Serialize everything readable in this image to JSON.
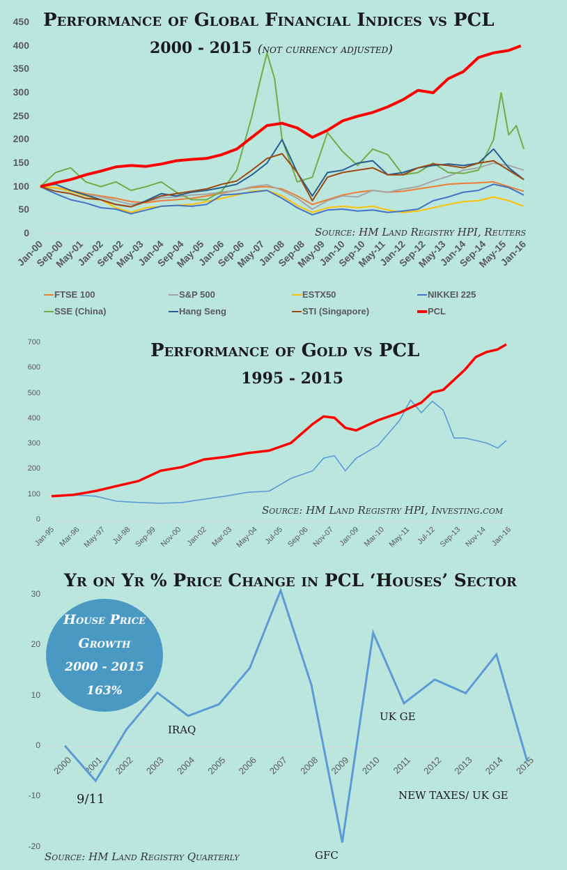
{
  "chart_data": [
    {
      "type": "line",
      "title": "Performance of Global Financial Indices vs PCL",
      "subtitle": "2000 - 2015",
      "subtitle_note": "(not currency adjusted)",
      "source": "Source: HM Land Registry HPI, Reuters",
      "xlabel": "",
      "ylabel": "",
      "ylim": [
        0,
        450
      ],
      "yticks": [
        0,
        50,
        100,
        150,
        200,
        250,
        300,
        350,
        400,
        450
      ],
      "xticks": [
        "Jan-00",
        "Sep-00",
        "May-01",
        "Jan-02",
        "Sep-02",
        "May-03",
        "Jan-04",
        "Sep-04",
        "May-05",
        "Jan-06",
        "Sep-06",
        "May-07",
        "Jan-08",
        "Sep-08",
        "May-09",
        "Jan-10",
        "Sep-10",
        "May-11",
        "Jan-12",
        "Sep-12",
        "May-13",
        "Jan-14",
        "Sep-14",
        "May-15",
        "Jan-16"
      ],
      "x_range_years": [
        2000,
        2016
      ],
      "legend_position": "bottom",
      "grid": false,
      "series": [
        {
          "name": "FTSE 100",
          "color": "#ed7d31",
          "x": [
            2000,
            2000.5,
            2001,
            2001.5,
            2002,
            2002.5,
            2003,
            2003.5,
            2004,
            2004.5,
            2005,
            2005.5,
            2006,
            2006.5,
            2007,
            2007.5,
            2008,
            2008.5,
            2009,
            2009.5,
            2010,
            2010.5,
            2011,
            2011.5,
            2012,
            2012.5,
            2013,
            2013.5,
            2014,
            2014.5,
            2015,
            2015.5,
            2016
          ],
          "values": [
            100,
            98,
            92,
            85,
            80,
            75,
            68,
            66,
            70,
            72,
            75,
            80,
            86,
            92,
            98,
            100,
            95,
            80,
            62,
            72,
            82,
            88,
            92,
            88,
            90,
            95,
            100,
            105,
            107,
            108,
            110,
            100,
            90
          ]
        },
        {
          "name": "S&P 500",
          "color": "#a5a5a5",
          "x": [
            2000,
            2000.5,
            2001,
            2001.5,
            2002,
            2002.5,
            2003,
            2003.5,
            2004,
            2004.5,
            2005,
            2005.5,
            2006,
            2006.5,
            2007,
            2007.5,
            2008,
            2008.5,
            2009,
            2009.5,
            2010,
            2010.5,
            2011,
            2011.5,
            2012,
            2012.5,
            2013,
            2013.5,
            2014,
            2014.5,
            2015,
            2015.5,
            2016
          ],
          "values": [
            100,
            97,
            90,
            83,
            78,
            70,
            62,
            68,
            76,
            78,
            82,
            84,
            88,
            92,
            100,
            104,
            92,
            75,
            52,
            70,
            80,
            78,
            92,
            88,
            95,
            100,
            112,
            122,
            135,
            140,
            150,
            145,
            135
          ]
        },
        {
          "name": "ESTX50",
          "color": "#ffc000",
          "x": [
            2000,
            2000.5,
            2001,
            2001.5,
            2002,
            2002.5,
            2003,
            2003.5,
            2004,
            2004.5,
            2005,
            2005.5,
            2006,
            2006.5,
            2007,
            2007.5,
            2008,
            2008.5,
            2009,
            2009.5,
            2010,
            2010.5,
            2011,
            2011.5,
            2012,
            2012.5,
            2013,
            2013.5,
            2014,
            2014.5,
            2015,
            2015.5,
            2016
          ],
          "values": [
            100,
            98,
            90,
            80,
            72,
            55,
            45,
            55,
            58,
            60,
            62,
            68,
            75,
            82,
            90,
            92,
            80,
            60,
            45,
            55,
            58,
            55,
            58,
            50,
            45,
            48,
            55,
            62,
            68,
            70,
            78,
            70,
            58
          ]
        },
        {
          "name": "NIKKEI 225",
          "color": "#4472c4",
          "x": [
            2000,
            2000.5,
            2001,
            2001.5,
            2002,
            2002.5,
            2003,
            2003.5,
            2004,
            2004.5,
            2005,
            2005.5,
            2006,
            2006.5,
            2007,
            2007.5,
            2008,
            2008.5,
            2009,
            2009.5,
            2010,
            2010.5,
            2011,
            2011.5,
            2012,
            2012.5,
            2013,
            2013.5,
            2014,
            2014.5,
            2015,
            2015.5,
            2016
          ],
          "values": [
            100,
            85,
            72,
            65,
            55,
            52,
            42,
            50,
            58,
            60,
            58,
            62,
            82,
            84,
            88,
            92,
            75,
            55,
            40,
            50,
            52,
            48,
            50,
            45,
            48,
            52,
            70,
            78,
            88,
            92,
            105,
            98,
            82
          ]
        },
        {
          "name": "SSE (China)",
          "color": "#70ad47",
          "x": [
            2000,
            2000.5,
            2001,
            2001.5,
            2002,
            2002.5,
            2003,
            2003.5,
            2004,
            2004.5,
            2005,
            2005.5,
            2006,
            2006.5,
            2007,
            2007.25,
            2007.5,
            2007.75,
            2008,
            2008.5,
            2009,
            2009.5,
            2010,
            2010.5,
            2011,
            2011.5,
            2012,
            2012.5,
            2013,
            2013.5,
            2014,
            2014.5,
            2015,
            2015.25,
            2015.5,
            2015.75,
            2016
          ],
          "values": [
            100,
            130,
            140,
            110,
            100,
            110,
            92,
            100,
            110,
            88,
            72,
            72,
            90,
            135,
            250,
            320,
            385,
            330,
            200,
            110,
            120,
            215,
            175,
            145,
            180,
            168,
            125,
            130,
            150,
            130,
            128,
            135,
            200,
            300,
            210,
            230,
            180
          ]
        },
        {
          "name": "Hang Seng",
          "color": "#255e91",
          "x": [
            2000,
            2000.5,
            2001,
            2001.5,
            2002,
            2002.5,
            2003,
            2003.5,
            2004,
            2004.5,
            2005,
            2005.5,
            2006,
            2006.5,
            2007,
            2007.5,
            2008,
            2008.5,
            2009,
            2009.5,
            2010,
            2010.5,
            2011,
            2011.5,
            2012,
            2012.5,
            2013,
            2013.5,
            2014,
            2014.5,
            2015,
            2015.5,
            2016
          ],
          "values": [
            100,
            105,
            92,
            82,
            72,
            62,
            57,
            70,
            85,
            80,
            88,
            92,
            98,
            105,
            125,
            150,
            200,
            130,
            80,
            130,
            135,
            150,
            155,
            125,
            130,
            140,
            145,
            148,
            145,
            150,
            180,
            140,
            115
          ]
        },
        {
          "name": "STI (Singapore)",
          "color": "#9e480e",
          "x": [
            2000,
            2000.5,
            2001,
            2001.5,
            2002,
            2002.5,
            2003,
            2003.5,
            2004,
            2004.5,
            2005,
            2005.5,
            2006,
            2006.5,
            2007,
            2007.5,
            2008,
            2008.5,
            2009,
            2009.5,
            2010,
            2010.5,
            2011,
            2011.5,
            2012,
            2012.5,
            2013,
            2013.5,
            2014,
            2014.5,
            2015,
            2015.5,
            2016
          ],
          "values": [
            100,
            90,
            85,
            75,
            72,
            62,
            57,
            68,
            80,
            85,
            90,
            95,
            105,
            112,
            135,
            160,
            170,
            130,
            70,
            120,
            130,
            135,
            140,
            125,
            125,
            140,
            148,
            145,
            140,
            150,
            155,
            135,
            115
          ]
        },
        {
          "name": "PCL",
          "color": "#ff0000",
          "x": [
            2000,
            2000.5,
            2001,
            2001.5,
            2002,
            2002.5,
            2003,
            2003.5,
            2004,
            2004.5,
            2005,
            2005.5,
            2006,
            2006.5,
            2007,
            2007.5,
            2008,
            2008.5,
            2009,
            2009.5,
            2010,
            2010.5,
            2011,
            2011.5,
            2012,
            2012.5,
            2013,
            2013.5,
            2014,
            2014.5,
            2015,
            2015.5,
            2015.9
          ],
          "values": [
            100,
            108,
            115,
            125,
            133,
            142,
            145,
            143,
            148,
            155,
            158,
            160,
            168,
            180,
            205,
            230,
            235,
            225,
            205,
            220,
            240,
            250,
            258,
            270,
            285,
            305,
            300,
            330,
            345,
            375,
            385,
            390,
            400
          ]
        }
      ]
    },
    {
      "type": "line",
      "title": "Performance of Gold vs PCL",
      "subtitle": "1995 - 2015",
      "source": "Source: HM Land Registry HPI, Investing.com",
      "xlabel": "",
      "ylabel": "",
      "ylim": [
        0,
        700
      ],
      "yticks": [
        0,
        100,
        200,
        300,
        400,
        500,
        600,
        700
      ],
      "xticks": [
        "Jan-95",
        "Mar-96",
        "May-97",
        "Jul-98",
        "Sep-99",
        "Nov-00",
        "Jan-02",
        "Mar-03",
        "May-04",
        "Jul-05",
        "Sep-06",
        "Nov-07",
        "Jan-09",
        "Mar-10",
        "May-11",
        "Jul-12",
        "Sep-13",
        "Nov-14",
        "Jan-16"
      ],
      "x_range_years": [
        1995,
        2016
      ],
      "grid": false,
      "series": [
        {
          "name": "PCL",
          "color": "#ff0000",
          "x": [
            1995,
            1996,
            1997,
            1998,
            1999,
            2000,
            2001,
            2002,
            2003,
            2004,
            2005,
            2006,
            2007,
            2007.5,
            2008,
            2008.5,
            2009,
            2010,
            2011,
            2011.5,
            2012,
            2012.5,
            2013,
            2013.5,
            2014,
            2014.5,
            2015,
            2015.5,
            2015.9
          ],
          "values": [
            100,
            105,
            120,
            140,
            160,
            200,
            215,
            245,
            255,
            270,
            280,
            310,
            385,
            415,
            410,
            370,
            360,
            400,
            430,
            450,
            470,
            510,
            520,
            560,
            600,
            650,
            670,
            680,
            700
          ]
        },
        {
          "name": "Gold",
          "color": "#5b9bd5",
          "x": [
            1995,
            1996,
            1997,
            1998,
            1999,
            2000,
            2001,
            2002,
            2003,
            2004,
            2005,
            2006,
            2007,
            2007.5,
            2008,
            2008.5,
            2009,
            2010,
            2011,
            2011.5,
            2012,
            2012.5,
            2013,
            2013.5,
            2014,
            2014.5,
            2015,
            2015.5,
            2015.9
          ],
          "values": [
            100,
            105,
            100,
            80,
            75,
            72,
            75,
            88,
            100,
            115,
            120,
            170,
            200,
            250,
            260,
            200,
            250,
            300,
            400,
            480,
            430,
            475,
            440,
            330,
            330,
            320,
            310,
            290,
            320
          ]
        }
      ]
    },
    {
      "type": "line",
      "title": "Yr on Yr % Price Change in PCL ‘Houses’ Sector",
      "source": "Source: HM Land Registry Quarterly",
      "xlabel": "",
      "ylabel": "",
      "ylim": [
        -20,
        30
      ],
      "yticks": [
        -20,
        -10,
        0,
        10,
        20,
        30
      ],
      "categories": [
        "2000",
        "2001",
        "2002",
        "2003",
        "2004",
        "2005",
        "2006",
        "2007",
        "2008",
        "2009",
        "2010",
        "2011",
        "2012",
        "2013",
        "2014",
        "2015"
      ],
      "series": [
        {
          "name": "PCL Houses YoY %",
          "color": "#5b9bd5",
          "values": [
            0.2,
            -6.8,
            3.4,
            10.7,
            6.1,
            8.4,
            15.6,
            31.0,
            12.2,
            -19.0,
            22.6,
            8.6,
            13.3,
            10.6,
            18.3,
            -3.0
          ]
        }
      ],
      "annotations": [
        {
          "text": "9/11",
          "near": "2001"
        },
        {
          "text": "IRAQ",
          "near": "2004"
        },
        {
          "text": "GFC",
          "near": "2009"
        },
        {
          "text": "UK GE",
          "near": "2011"
        },
        {
          "text": "NEW TAXES/ UK GE",
          "near": "2015"
        }
      ]
    }
  ],
  "callout": {
    "line1": "House Price",
    "line2": "Growth",
    "line3": "2000 - 2015",
    "line4": "163%",
    "color": "#4a99c2"
  },
  "colors": {
    "background": "#bae6de",
    "pcl": "#ff0000",
    "text": "#1a1a1a",
    "axis_text": "#595959"
  }
}
